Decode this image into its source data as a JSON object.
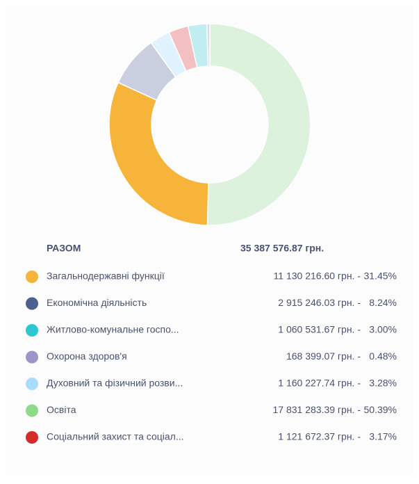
{
  "chart_data": {
    "type": "pie",
    "total_label": "РАЗОМ",
    "total": "35 387 576.87 грн.",
    "categories": [
      "Загальнодержавні функції",
      "Економічна діяльність",
      "Житлово-комунальне госпо...",
      "Охорона здоров'я",
      "Духовний та фізичний розви...",
      "Освіта",
      "Соціальний захист та соціал..."
    ],
    "amount_labels": [
      "11 130 216.60 грн. -",
      "2 915 246.03 грн. -",
      "1 060 531.67 грн. -",
      "168 399.07 грн. -",
      "1 160 227.74 грн. -",
      "17 831 283.39 грн. -",
      "1 121 672.37 грн. -"
    ],
    "values": [
      31.45,
      8.24,
      3.0,
      0.48,
      3.28,
      50.39,
      3.17
    ],
    "value_labels": [
      "31.45%",
      "8.24%",
      "3.00%",
      "0.48%",
      "3.28%",
      "50.39%",
      "3.17%"
    ],
    "colors": [
      "#f7b43a",
      "#4d5e90",
      "#2cc7d3",
      "#9c95c9",
      "#a9dcfb",
      "#8fd98b",
      "#d42a2a"
    ],
    "slice_colors": [
      "#f7b43a",
      "#c9cfdf",
      "#bfedf0",
      "#dcd9ee",
      "#e0f2fd",
      "#ddf2dc",
      "#f2c0c1"
    ]
  }
}
